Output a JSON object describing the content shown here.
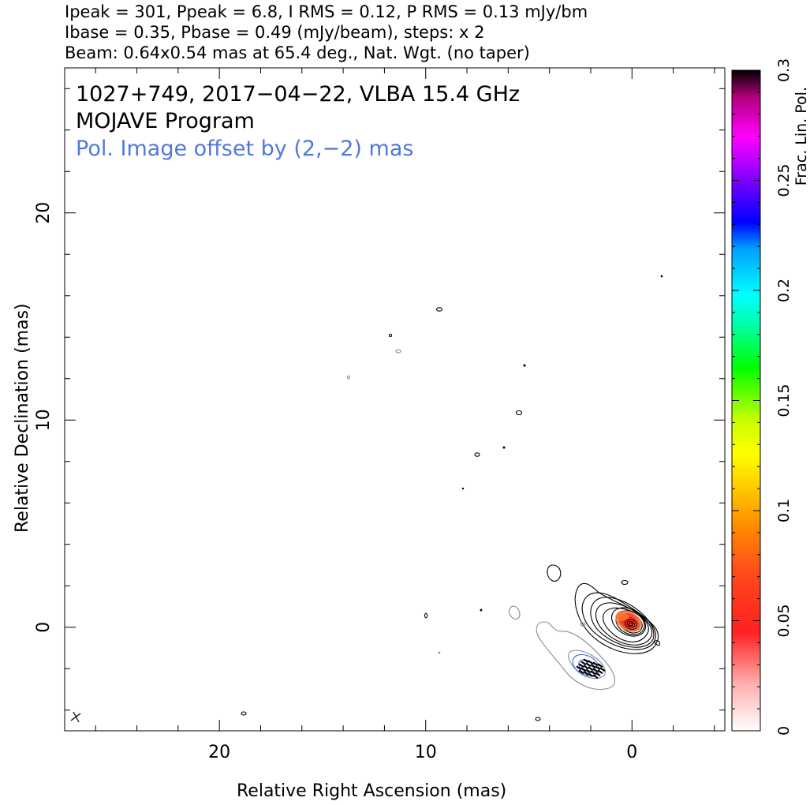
{
  "header": {
    "line1": "Ipeak = 301, Ppeak = 6.8, I RMS = 0.12, P RMS = 0.13 mJy/bm",
    "line2": "Ibase = 0.35, Pbase = 0.49 (mJy/beam), steps: x 2",
    "line3": "Beam: 0.64x0.54 mas at 65.4 deg., Nat. Wgt. (no taper)"
  },
  "chart_data": {
    "type": "heatmap",
    "labels": {
      "source": "1027+749, 2017−04−22, VLBA 15.4 GHz",
      "program": "MOJAVE Program",
      "offset_note": "Pol. Image offset by (2,−2) mas"
    },
    "xlabel": "Relative Right Ascension (mas)",
    "ylabel": "Relative Declination (mas)",
    "xlim": [
      27.5,
      -4.5
    ],
    "ylim": [
      -5,
      27
    ],
    "x_ticks": [
      20,
      10,
      0
    ],
    "y_ticks": [
      0,
      10,
      20
    ],
    "x_tick_labels": [
      "20",
      "10",
      "0"
    ],
    "y_tick_labels": [
      "0",
      "10",
      "20"
    ],
    "colorbar": {
      "label": "Frac. Lin. Pol.",
      "range": [
        0,
        0.3
      ],
      "ticks": [
        0,
        0.05,
        0.1,
        0.15,
        0.2,
        0.25,
        0.3
      ],
      "tick_labels": [
        "0",
        "0.05",
        "0.1",
        "0.15",
        "0.2",
        "0.25",
        "0.3"
      ]
    },
    "stokes_i_core": {
      "x": 0,
      "y": 0,
      "peak_mjy_per_beam": 301
    },
    "polarization_peak": {
      "x": 2,
      "y": -2,
      "peak_mjy_per_beam": 6.8
    },
    "offset_mas": [
      2,
      -2
    ],
    "beam": {
      "major_mas": 0.64,
      "minor_mas": 0.54,
      "pa_deg": 65.4
    }
  }
}
